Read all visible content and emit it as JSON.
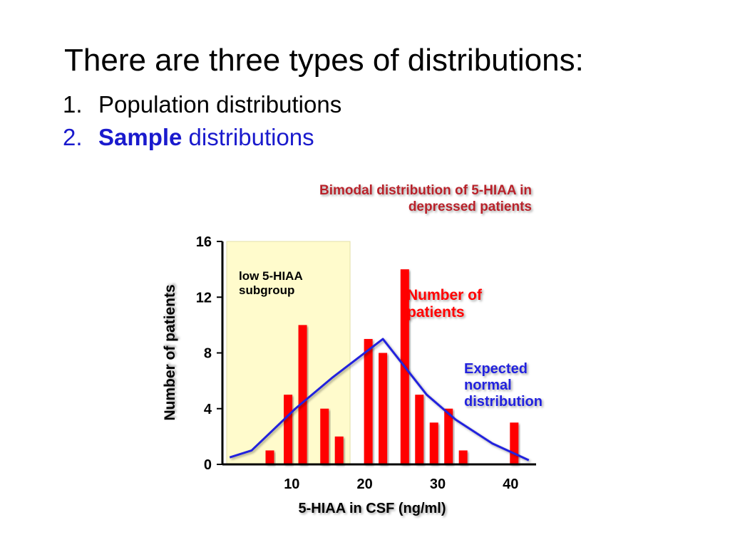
{
  "slide": {
    "heading": "There are three types of distributions:",
    "items": [
      {
        "number": "1.",
        "text": "Population distributions"
      },
      {
        "number": "2.",
        "bold": "Sample",
        "text": " distributions"
      }
    ]
  },
  "chart_data": {
    "type": "bar",
    "title_lines": [
      "Bimodal distribution of 5-HIAA in",
      "depressed patients"
    ],
    "xlabel": "5-HIAA in CSF (ng/ml)",
    "ylabel": "Number of patients",
    "x_ticks": [
      10,
      20,
      30,
      40
    ],
    "y_ticks": [
      0,
      4,
      8,
      12,
      16
    ],
    "xlim": [
      0,
      43
    ],
    "ylim": [
      0,
      16
    ],
    "grid": false,
    "shaded_region": {
      "x_from": 0,
      "x_to": 17.5,
      "label_lines": [
        "low 5-HIAA",
        "subgroup"
      ],
      "color": "#fffbcc"
    },
    "series": [
      {
        "type": "bar",
        "label_lines": [
          "Number of",
          "patients"
        ],
        "color": "#ff0000",
        "x": [
          6.5,
          9,
          11,
          14,
          16,
          20,
          22,
          25,
          27,
          29,
          31,
          33,
          40
        ],
        "values": [
          1,
          5,
          10,
          4,
          2,
          9,
          8,
          14,
          5,
          3,
          4,
          1,
          3
        ]
      },
      {
        "type": "line",
        "label_lines": [
          "Expected",
          "normal",
          "distribution"
        ],
        "color": "#2222dd",
        "x": [
          1,
          4,
          10,
          15,
          22,
          28,
          32,
          37,
          42
        ],
        "values": [
          0.5,
          1,
          4,
          6.2,
          9,
          5,
          3.2,
          1.5,
          0.3
        ]
      }
    ]
  }
}
